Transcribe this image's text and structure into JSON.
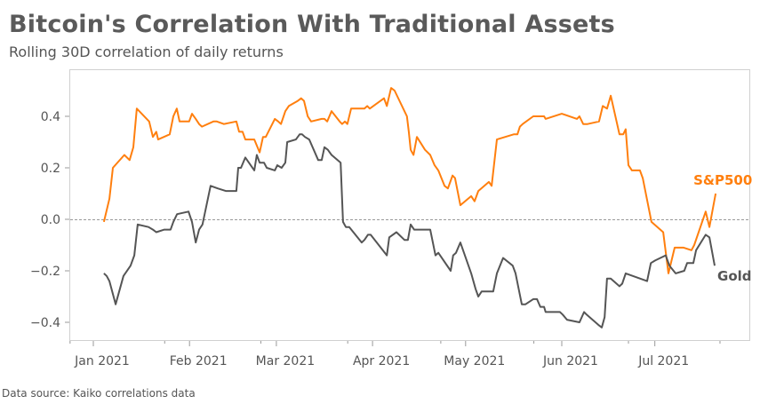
{
  "chart_data": {
    "type": "line",
    "title": "Bitcoin's Correlation With Traditional Assets",
    "subtitle": "Rolling 30D correlation of daily returns",
    "source": "Data source: Kaiko correlations data",
    "x_units": "days since 2021-01-01",
    "xlim": [
      -7.5,
      211
    ],
    "ylim": [
      -0.47,
      0.56
    ],
    "y_ticks": [
      -0.4,
      -0.2,
      0.0,
      0.2,
      0.4
    ],
    "y_tick_labels": [
      "−0.4",
      "−0.2",
      "0.0",
      "0.2",
      "0.4"
    ],
    "x_ticks": [
      0,
      31,
      59,
      90,
      120,
      151,
      181
    ],
    "x_tick_labels": [
      "Jan 2021",
      "Feb 2021",
      "Mar 2021",
      "Apr 2021",
      "May 2021",
      "Jun 2021",
      "Jul 2021"
    ],
    "x_minor_ticks": [
      -7.5,
      23,
      54,
      82,
      112,
      142,
      172.5,
      202
    ],
    "reference_line": 0,
    "series": [
      {
        "name": "S&P500",
        "color": "#ff7f0e",
        "x": [
          3.4,
          5.2,
          6.3,
          10,
          11.7,
          12.9,
          14,
          18,
          19.2,
          20.3,
          20.9,
          24.6,
          25.8,
          26.9,
          27.8,
          30.9,
          31.8,
          33,
          34.1,
          35,
          38.7,
          39.8,
          42.1,
          46.1,
          47,
          48.1,
          49,
          51.9,
          53.6,
          54.7,
          55.6,
          58.5,
          59.6,
          60.5,
          61.9,
          63,
          65.9,
          67,
          67.9,
          69.1,
          70.2,
          73.6,
          74.5,
          75.4,
          76.8,
          79.4,
          80.2,
          81.1,
          81.9,
          83.1,
          87.4,
          88.3,
          89.1,
          93.7,
          94.6,
          96,
          97.1,
          101.1,
          101.7,
          102.3,
          103.2,
          104.3,
          106.9,
          108.6,
          110,
          111.2,
          113.2,
          114.3,
          115.8,
          116.6,
          118.3,
          121.8,
          122.9,
          124.1,
          127.5,
          128.4,
          130.1,
          135.5,
          136.7,
          137.5,
          138.4,
          141.8,
          145.3,
          145.8,
          151,
          155.9,
          156.7,
          157.9,
          159.3,
          163,
          164.2,
          165.6,
          166.8,
          169.6,
          170.8,
          171.6,
          172.5,
          173.6,
          176.2,
          177.1,
          179.9,
          183.7,
          185.4,
          187.4,
          190.3,
          192.8,
          193.7,
          197.4,
          198.6,
          200.6
        ],
        "y": [
          -0.01,
          0.08,
          0.2,
          0.25,
          0.23,
          0.28,
          0.43,
          0.38,
          0.32,
          0.34,
          0.31,
          0.33,
          0.4,
          0.43,
          0.38,
          0.38,
          0.41,
          0.39,
          0.37,
          0.36,
          0.38,
          0.38,
          0.37,
          0.38,
          0.34,
          0.34,
          0.31,
          0.31,
          0.26,
          0.32,
          0.32,
          0.39,
          0.38,
          0.37,
          0.42,
          0.44,
          0.46,
          0.47,
          0.46,
          0.4,
          0.38,
          0.39,
          0.39,
          0.38,
          0.42,
          0.38,
          0.37,
          0.38,
          0.37,
          0.43,
          0.43,
          0.44,
          0.43,
          0.47,
          0.44,
          0.51,
          0.5,
          0.4,
          0.34,
          0.27,
          0.25,
          0.32,
          0.27,
          0.25,
          0.21,
          0.19,
          0.13,
          0.12,
          0.17,
          0.16,
          0.055,
          0.09,
          0.07,
          0.11,
          0.145,
          0.13,
          0.31,
          0.33,
          0.33,
          0.36,
          0.37,
          0.4,
          0.4,
          0.39,
          0.41,
          0.39,
          0.4,
          0.37,
          0.37,
          0.38,
          0.44,
          0.43,
          0.48,
          0.33,
          0.33,
          0.35,
          0.21,
          0.19,
          0.19,
          0.16,
          -0.01,
          -0.05,
          -0.21,
          -0.11,
          -0.11,
          -0.12,
          -0.1,
          0.03,
          -0.03,
          0.1
        ]
      },
      {
        "name": "Gold",
        "color": "#555555",
        "x": [
          3.4,
          4.3,
          5.2,
          7.2,
          9.7,
          12,
          13.2,
          14.3,
          17.8,
          19.2,
          20.3,
          22.9,
          24.9,
          25.8,
          27,
          30.7,
          31.8,
          33,
          34.1,
          35.2,
          37.8,
          40.1,
          42.7,
          46.1,
          46.7,
          47.6,
          49,
          51.9,
          52.7,
          53.6,
          55,
          55.9,
          58.5,
          59.3,
          60.7,
          61.9,
          62.5,
          65.3,
          66.5,
          67.3,
          68.2,
          69.6,
          72.5,
          73.6,
          74.5,
          75.6,
          76.8,
          79.7,
          80.5,
          81.4,
          82.5,
          86.5,
          87.4,
          88.5,
          89.4,
          94.6,
          95.4,
          97.7,
          100.3,
          101.4,
          102.3,
          103.4,
          108.6,
          110.3,
          111.2,
          115.2,
          116,
          116.9,
          118.3,
          121.8,
          123.2,
          124.1,
          125.2,
          128.9,
          130.1,
          132.1,
          135.2,
          136.1,
          138.1,
          139.3,
          141.8,
          143,
          144.1,
          145.3,
          145.8,
          150.4,
          151.3,
          152.7,
          156.7,
          158.2,
          159,
          162.8,
          163.9,
          164.8,
          165.6,
          166.8,
          169.6,
          170.5,
          171.6,
          173.9,
          178.5,
          179.7,
          181.1,
          184.5,
          185.7,
          187.7,
          190.5,
          191.4,
          193.4,
          194.3,
          197.4,
          198.6,
          200.3
        ],
        "y": [
          -0.21,
          -0.22,
          -0.24,
          -0.33,
          -0.22,
          -0.18,
          -0.14,
          -0.02,
          -0.03,
          -0.04,
          -0.05,
          -0.04,
          -0.04,
          -0.01,
          0.02,
          0.03,
          -0.01,
          -0.09,
          -0.04,
          -0.02,
          0.13,
          0.12,
          0.11,
          0.11,
          0.2,
          0.2,
          0.24,
          0.19,
          0.25,
          0.22,
          0.22,
          0.2,
          0.19,
          0.21,
          0.2,
          0.22,
          0.3,
          0.31,
          0.33,
          0.33,
          0.32,
          0.31,
          0.23,
          0.23,
          0.28,
          0.27,
          0.25,
          0.22,
          -0.01,
          -0.03,
          -0.03,
          -0.09,
          -0.08,
          -0.06,
          -0.06,
          -0.14,
          -0.07,
          -0.05,
          -0.08,
          -0.08,
          -0.02,
          -0.04,
          -0.04,
          -0.14,
          -0.13,
          -0.2,
          -0.14,
          -0.13,
          -0.09,
          -0.21,
          -0.27,
          -0.3,
          -0.28,
          -0.28,
          -0.21,
          -0.15,
          -0.18,
          -0.21,
          -0.33,
          -0.33,
          -0.31,
          -0.31,
          -0.34,
          -0.34,
          -0.36,
          -0.36,
          -0.37,
          -0.39,
          -0.4,
          -0.36,
          -0.37,
          -0.41,
          -0.42,
          -0.38,
          -0.23,
          -0.23,
          -0.26,
          -0.25,
          -0.21,
          -0.22,
          -0.24,
          -0.17,
          -0.16,
          -0.14,
          -0.18,
          -0.21,
          -0.2,
          -0.17,
          -0.17,
          -0.12,
          -0.06,
          -0.07,
          -0.18
        ]
      }
    ]
  }
}
